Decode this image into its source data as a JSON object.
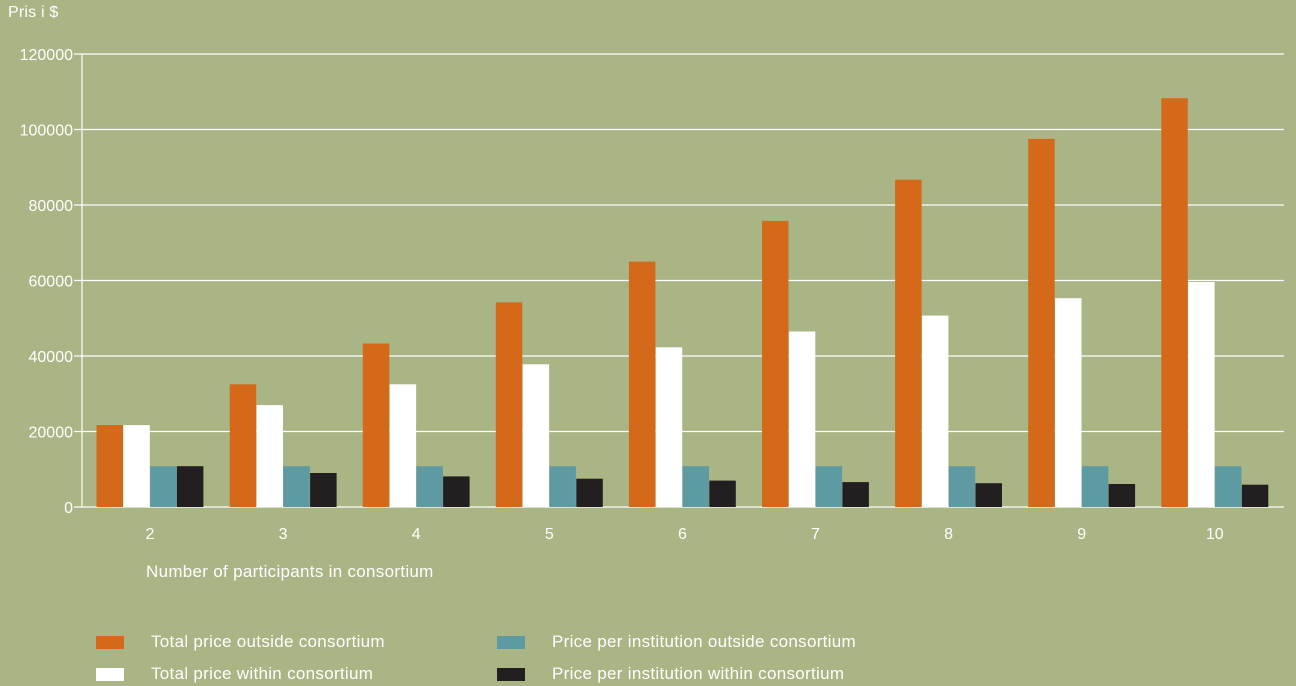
{
  "chart_data": {
    "type": "bar",
    "ylabel": "Pris i $",
    "xlabel": "Number of participants in consortium",
    "categories": [
      "2",
      "3",
      "4",
      "5",
      "6",
      "7",
      "8",
      "9",
      "10"
    ],
    "ylim": [
      0,
      120000
    ],
    "yticks": [
      0,
      20000,
      40000,
      60000,
      80000,
      100000,
      120000
    ],
    "ytick_labels": [
      "0",
      "20000",
      "40000",
      "60000",
      "80000",
      "100000",
      "120000"
    ],
    "grid": true,
    "legend_position": "bottom",
    "series": [
      {
        "name": "Total price outside consortium",
        "color": "#d4691a",
        "values": [
          21700,
          32500,
          43300,
          54200,
          65000,
          75800,
          86700,
          97500,
          108300
        ]
      },
      {
        "name": "Total price within consortium",
        "color": "#ffffff",
        "values": [
          21700,
          27000,
          32500,
          37800,
          42300,
          46500,
          50700,
          55300,
          59600
        ]
      },
      {
        "name": "Price per institution outside consortium",
        "color": "#5e9aa1",
        "values": [
          10800,
          10800,
          10800,
          10800,
          10800,
          10800,
          10800,
          10800,
          10800
        ]
      },
      {
        "name": "Price per institution within consortium",
        "color": "#231f20",
        "values": [
          10800,
          9000,
          8100,
          7500,
          7000,
          6600,
          6300,
          6100,
          5900
        ]
      }
    ]
  }
}
